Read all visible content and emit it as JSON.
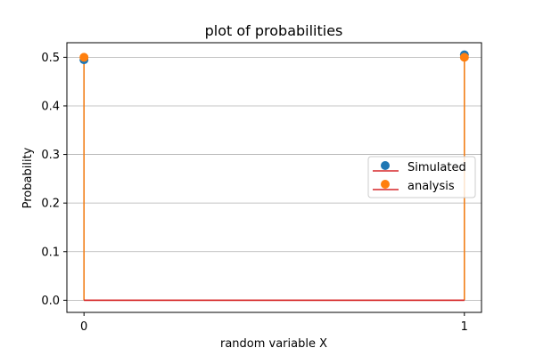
{
  "chart_data": {
    "type": "stem",
    "title": "plot of probabilities",
    "xlabel": "random variable X",
    "ylabel": "Probability",
    "x_ticks": [
      "0",
      "1"
    ],
    "y_ticks": [
      "0.0",
      "0.1",
      "0.2",
      "0.3",
      "0.4",
      "0.5"
    ],
    "xlim": [
      -0.045,
      1.045
    ],
    "ylim": [
      -0.025,
      0.53
    ],
    "grid": "horizontal",
    "legend_position": "center-right",
    "series": [
      {
        "name": "Simulated",
        "x": [
          0,
          1
        ],
        "y": [
          0.495,
          0.505
        ],
        "marker_color": "#1f77b4",
        "stem_color": "#1f77b4",
        "baseline_color": "#d62728"
      },
      {
        "name": "analysis",
        "x": [
          0,
          1
        ],
        "y": [
          0.5,
          0.5
        ],
        "marker_color": "#ff7f0e",
        "stem_color": "#ff7f0e",
        "baseline_color": "#d62728"
      }
    ]
  }
}
